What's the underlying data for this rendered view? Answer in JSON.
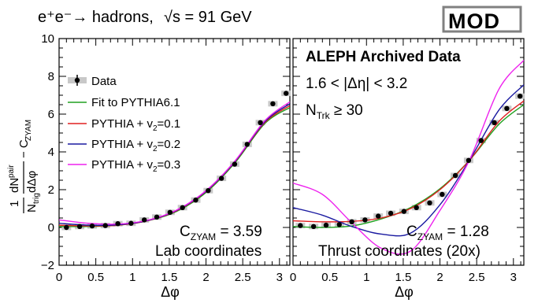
{
  "header": {
    "process": "e⁺e⁻→ hadrons,",
    "energy": "√s = 91 GeV"
  },
  "logo": {
    "text": "MOD",
    "colors": {
      "frame": "#808080",
      "text": "#808080",
      "ring": "#e0262e"
    }
  },
  "y_axis_label": {
    "one": "1",
    "n_trig": "N",
    "n_trig_sub": "trig",
    "num": "dN",
    "num_sup": "pair",
    "den": "dΔφ",
    "minus_c": "− C",
    "c_sub": "ZYAM"
  },
  "colors": {
    "data": "#000000",
    "data_syst": "#c8c8c8",
    "fit": "#20a020",
    "v2_01": "#e02020",
    "v2_02": "#1a1aa0",
    "v2_03": "#ee22ee"
  },
  "chart_data": [
    {
      "type": "line",
      "panel": "left",
      "xlabel": "Δφ",
      "xlim": [
        0,
        3.1416
      ],
      "ylim": [
        -2,
        10
      ],
      "x_ticks": [
        0,
        0.5,
        1,
        1.5,
        2,
        2.5,
        3
      ],
      "x_tick_labels": [
        "0",
        "0.5",
        "1",
        "1.5",
        "2",
        "2.5",
        "3"
      ],
      "y_ticks": [
        -2,
        0,
        2,
        4,
        6,
        8,
        10
      ],
      "y_tick_labels": [
        "−2",
        "0",
        "2",
        "4",
        "6",
        "8",
        "10"
      ],
      "legend": {
        "placement": "top-left",
        "entries": [
          {
            "label": "Data",
            "series": "data"
          },
          {
            "label": "Fit to PYTHIA6.1",
            "series": "fit"
          },
          {
            "label": "PYTHIA + v",
            "sub": "2",
            "tail": "=0.1",
            "series": "v2_01"
          },
          {
            "label": "PYTHIA + v",
            "sub": "2",
            "tail": "=0.2",
            "series": "v2_02"
          },
          {
            "label": "PYTHIA + v",
            "sub": "2",
            "tail": "=0.3",
            "series": "v2_03"
          }
        ]
      },
      "annotations": [
        {
          "text": "C",
          "sub": "ZYAM",
          "tail": " = 3.59"
        },
        {
          "text": "Lab coordinates"
        }
      ],
      "data": {
        "x": [
          0.1,
          0.28,
          0.45,
          0.63,
          0.8,
          0.98,
          1.16,
          1.33,
          1.51,
          1.68,
          1.86,
          2.03,
          2.21,
          2.39,
          2.56,
          2.74,
          2.91,
          3.09
        ],
        "y": [
          0.0,
          0.05,
          0.08,
          0.1,
          0.2,
          0.22,
          0.4,
          0.55,
          0.8,
          1.05,
          1.45,
          1.95,
          2.6,
          3.35,
          4.4,
          5.55,
          6.55,
          7.1
        ]
      },
      "series": [
        {
          "key": "fit",
          "x": [
            0,
            0.4,
            0.8,
            1.2,
            1.6,
            2.0,
            2.4,
            2.8,
            3.1416
          ],
          "y": [
            0.05,
            0.05,
            0.12,
            0.35,
            0.85,
            1.85,
            3.45,
            5.5,
            6.35
          ]
        },
        {
          "key": "v2_01",
          "x": [
            0,
            0.4,
            0.8,
            1.2,
            1.6,
            2.0,
            2.4,
            2.8,
            3.1416
          ],
          "y": [
            0.12,
            0.08,
            0.12,
            0.35,
            0.88,
            1.9,
            3.5,
            5.55,
            6.45
          ]
        },
        {
          "key": "v2_02",
          "x": [
            0,
            0.4,
            0.8,
            1.2,
            1.6,
            2.0,
            2.4,
            2.8,
            3.1416
          ],
          "y": [
            0.22,
            0.12,
            0.14,
            0.36,
            0.9,
            1.92,
            3.52,
            5.6,
            6.55
          ]
        },
        {
          "key": "v2_03",
          "x": [
            0,
            0.4,
            0.8,
            1.2,
            1.6,
            2.0,
            2.4,
            2.8,
            3.1416
          ],
          "y": [
            0.4,
            0.22,
            0.18,
            0.38,
            0.92,
            1.95,
            3.55,
            5.65,
            6.65
          ]
        }
      ]
    },
    {
      "type": "line",
      "panel": "right",
      "xlabel": "Δφ",
      "xlim": [
        0,
        3.1416
      ],
      "ylim": [
        -2,
        10
      ],
      "x_ticks": [
        0,
        0.5,
        1,
        1.5,
        2,
        2.5,
        3
      ],
      "x_tick_labels": [
        "0",
        "0.5",
        "1",
        "1.5",
        "2",
        "2.5",
        "3"
      ],
      "annotations": [
        {
          "text": "ALEPH Archived Data",
          "bold": true
        },
        {
          "text": "1.6 < |Δη| < 3.2"
        },
        {
          "text": "N",
          "sub": "Trk",
          "tail": " ≥ 30"
        },
        {
          "text": "C",
          "sub": "ZYAM",
          "tail": " = 1.28"
        },
        {
          "text": "Thrust coordinates (20x)"
        }
      ],
      "data": {
        "x": [
          0.1,
          0.28,
          0.45,
          0.63,
          0.8,
          0.98,
          1.16,
          1.33,
          1.51,
          1.68,
          1.86,
          2.03,
          2.21,
          2.39,
          2.56,
          2.74,
          2.91,
          3.09
        ],
        "y": [
          0.1,
          0.05,
          0.12,
          0.15,
          0.3,
          0.4,
          0.6,
          0.75,
          0.85,
          1.05,
          1.3,
          1.75,
          2.75,
          3.55,
          4.6,
          5.55,
          6.3,
          6.95
        ]
      },
      "series": [
        {
          "key": "fit",
          "x": [
            0,
            0.4,
            0.8,
            1.2,
            1.6,
            2.0,
            2.4,
            2.8,
            3.1416
          ],
          "y": [
            0.05,
            0.0,
            0.08,
            0.45,
            1.05,
            2.05,
            3.55,
            5.45,
            6.5
          ]
        },
        {
          "key": "v2_01",
          "x": [
            0,
            0.4,
            0.8,
            1.2,
            1.6,
            2.0,
            2.4,
            2.8,
            3.1416
          ],
          "y": [
            0.35,
            0.3,
            0.32,
            0.5,
            1.0,
            2.0,
            3.55,
            5.6,
            6.7
          ]
        },
        {
          "key": "v2_02",
          "x": [
            0,
            0.4,
            0.8,
            1.2,
            1.6,
            2.0,
            2.4,
            2.8,
            3.1416
          ],
          "y": [
            1.05,
            0.65,
            0.05,
            -0.35,
            -0.3,
            1.2,
            3.55,
            6.2,
            7.55
          ]
        },
        {
          "key": "v2_03",
          "x": [
            0,
            0.4,
            0.8,
            1.2,
            1.6,
            2.0,
            2.4,
            2.8,
            3.1416
          ],
          "y": [
            2.35,
            1.75,
            0.25,
            -1.1,
            -1.25,
            0.9,
            3.55,
            7.3,
            8.85
          ]
        }
      ]
    }
  ]
}
